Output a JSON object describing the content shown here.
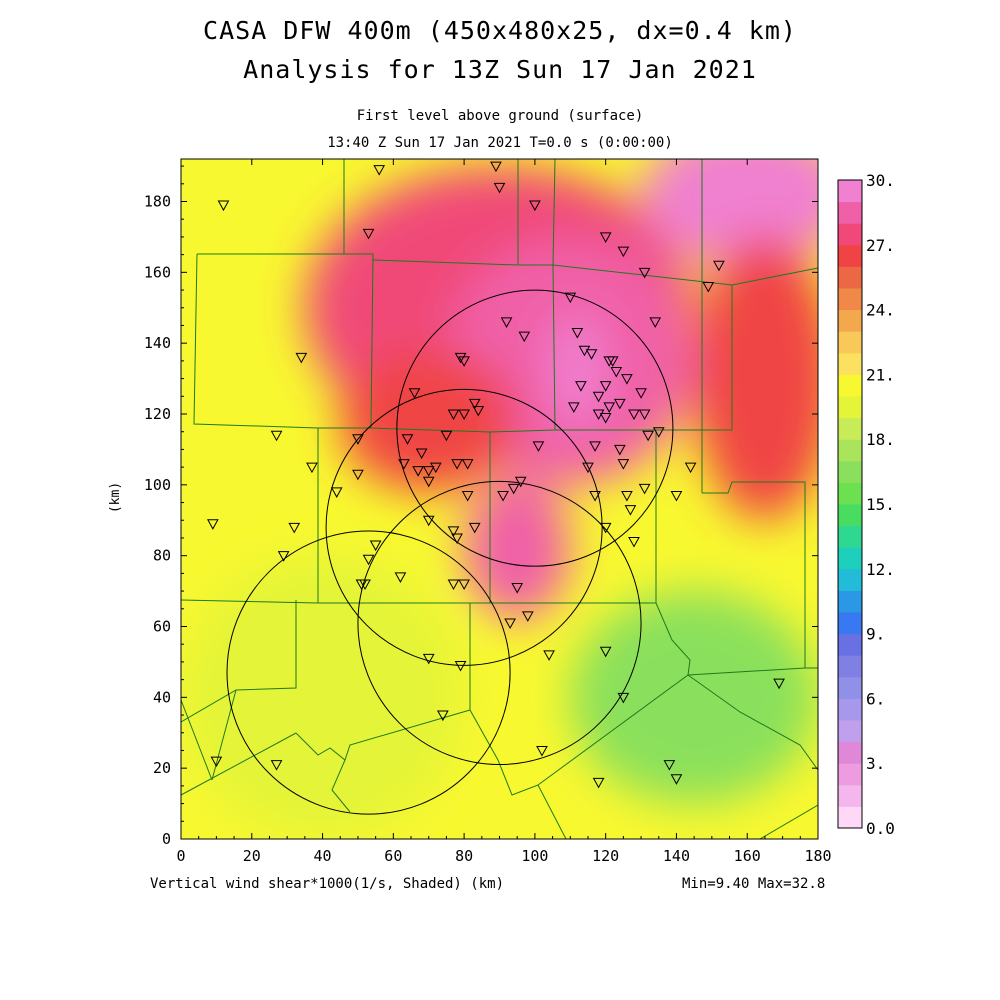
{
  "title_line1": "CASA DFW 400m (450x480x25, dx=0.4 km)",
  "title_line2": "Analysis for 13Z Sun 17 Jan 2021",
  "subtitle_line1": "First level above ground (surface)",
  "subtitle_line2": "13:40 Z Sun 17 Jan 2021   T=0.0 s (0:00:00)",
  "y_axis_label": "(km)",
  "x_axis_label": "Vertical wind shear*1000(1/s, Shaded)  (km)",
  "stats": "Min=9.40 Max=32.8",
  "x_ticks": [
    "0",
    "20",
    "40",
    "60",
    "80",
    "100",
    "120",
    "140",
    "160",
    "180"
  ],
  "y_ticks": [
    "0",
    "20",
    "40",
    "60",
    "80",
    "100",
    "120",
    "140",
    "160",
    "180"
  ],
  "colorbar": {
    "labels": [
      "30.",
      "27.",
      "24.",
      "21.",
      "18.",
      "15.",
      "12.",
      "9.",
      "6.",
      "3.",
      "0.0"
    ],
    "colors": [
      "#ffd8f8",
      "#f4b6ec",
      "#ec9cdf",
      "#e088d8",
      "#c0a0ec",
      "#a898ec",
      "#9090e8",
      "#8080e4",
      "#6870e4",
      "#3878f0",
      "#2a98e4",
      "#22bcd8",
      "#1ed0bc",
      "#2ed890",
      "#48dc60",
      "#6ce050",
      "#8ae05c",
      "#aae45c",
      "#c8ec58",
      "#e4f438",
      "#f8f830",
      "#fce060",
      "#f8c858",
      "#f4a84e",
      "#f08848",
      "#ec6844",
      "#f04444",
      "#f04878",
      "#f060a8",
      "#f080d0"
    ]
  },
  "color_scale": {
    "min": 0,
    "max": 30
  },
  "radar_circles": [
    {
      "x": 100,
      "y": 116,
      "r": 39
    },
    {
      "x": 80,
      "y": 88,
      "r": 39
    },
    {
      "x": 90,
      "y": 61,
      "r": 40
    },
    {
      "x": 53,
      "y": 47,
      "r": 40
    }
  ],
  "stations": [
    [
      12,
      179
    ],
    [
      56,
      189
    ],
    [
      89,
      190
    ],
    [
      90,
      184
    ],
    [
      100,
      179
    ],
    [
      53,
      171
    ],
    [
      120,
      170
    ],
    [
      125,
      166
    ],
    [
      131,
      160
    ],
    [
      149,
      156
    ],
    [
      152,
      162
    ],
    [
      110,
      153
    ],
    [
      134,
      146
    ],
    [
      92,
      146
    ],
    [
      97,
      142
    ],
    [
      112,
      143
    ],
    [
      114,
      138
    ],
    [
      116,
      137
    ],
    [
      121,
      135
    ],
    [
      122,
      135
    ],
    [
      79,
      136
    ],
    [
      80,
      135
    ],
    [
      34,
      136
    ],
    [
      123,
      132
    ],
    [
      126,
      130
    ],
    [
      113,
      128
    ],
    [
      120,
      128
    ],
    [
      66,
      126
    ],
    [
      83,
      123
    ],
    [
      84,
      121
    ],
    [
      130,
      126
    ],
    [
      118,
      125
    ],
    [
      121,
      122
    ],
    [
      124,
      123
    ],
    [
      77,
      120
    ],
    [
      80,
      120
    ],
    [
      111,
      122
    ],
    [
      118,
      120
    ],
    [
      120,
      119
    ],
    [
      128,
      120
    ],
    [
      131,
      120
    ],
    [
      75,
      114
    ],
    [
      64,
      113
    ],
    [
      50,
      113
    ],
    [
      27,
      114
    ],
    [
      132,
      114
    ],
    [
      135,
      115
    ],
    [
      101,
      111
    ],
    [
      117,
      111
    ],
    [
      124,
      110
    ],
    [
      125,
      106
    ],
    [
      68,
      109
    ],
    [
      67,
      104
    ],
    [
      70,
      104
    ],
    [
      72,
      105
    ],
    [
      63,
      106
    ],
    [
      78,
      106
    ],
    [
      81,
      106
    ],
    [
      37,
      105
    ],
    [
      115,
      105
    ],
    [
      144,
      105
    ],
    [
      70,
      101
    ],
    [
      50,
      103
    ],
    [
      44,
      98
    ],
    [
      81,
      97
    ],
    [
      91,
      97
    ],
    [
      94,
      99
    ],
    [
      96,
      101
    ],
    [
      126,
      97
    ],
    [
      131,
      99
    ],
    [
      140,
      97
    ],
    [
      127,
      93
    ],
    [
      117,
      97
    ],
    [
      9,
      89
    ],
    [
      32,
      88
    ],
    [
      70,
      90
    ],
    [
      77,
      87
    ],
    [
      78,
      85
    ],
    [
      83,
      88
    ],
    [
      120,
      88
    ],
    [
      128,
      84
    ],
    [
      55,
      83
    ],
    [
      53,
      79
    ],
    [
      29,
      80
    ],
    [
      62,
      74
    ],
    [
      77,
      72
    ],
    [
      80,
      72
    ],
    [
      95,
      71
    ],
    [
      51,
      72
    ],
    [
      52,
      72
    ],
    [
      98,
      63
    ],
    [
      93,
      61
    ],
    [
      104,
      52
    ],
    [
      120,
      53
    ],
    [
      70,
      51
    ],
    [
      79,
      49
    ],
    [
      125,
      40
    ],
    [
      74,
      35
    ],
    [
      102,
      25
    ],
    [
      138,
      21
    ],
    [
      140,
      17
    ],
    [
      10,
      22
    ],
    [
      27,
      21
    ],
    [
      118,
      16
    ],
    [
      169,
      44
    ]
  ],
  "field_blobs": [
    {
      "x": 90,
      "y": 150,
      "rx": 55,
      "ry": 40,
      "v": 27
    },
    {
      "x": 110,
      "y": 135,
      "rx": 35,
      "ry": 35,
      "v": 28
    },
    {
      "x": 112,
      "y": 132,
      "rx": 8,
      "ry": 16,
      "v": 31
    },
    {
      "x": 95,
      "y": 82,
      "rx": 15,
      "ry": 20,
      "v": 28
    },
    {
      "x": 160,
      "y": 182,
      "rx": 30,
      "ry": 20,
      "v": 30
    },
    {
      "x": 165,
      "y": 130,
      "rx": 20,
      "ry": 40,
      "v": 26
    },
    {
      "x": 70,
      "y": 118,
      "rx": 25,
      "ry": 20,
      "v": 26
    },
    {
      "x": 40,
      "y": 40,
      "rx": 40,
      "ry": 40,
      "v": 19
    },
    {
      "x": 145,
      "y": 40,
      "rx": 35,
      "ry": 30,
      "v": 16
    }
  ]
}
